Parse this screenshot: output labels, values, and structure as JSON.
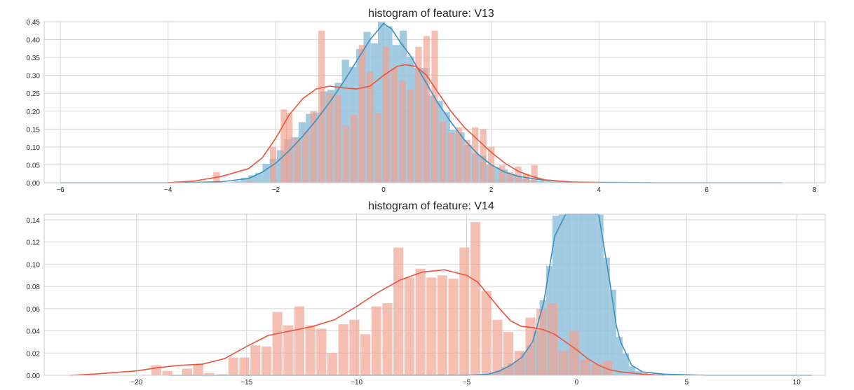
{
  "chart_data": [
    {
      "type": "histogram",
      "title": "histogram of feature: V13",
      "xlabel": "",
      "ylabel": "",
      "xlim": [
        -6.3,
        8.2
      ],
      "ylim": [
        0,
        0.45
      ],
      "xticks": [
        -6,
        -4,
        -2,
        0,
        2,
        4,
        6,
        8
      ],
      "xtick_labels": [
        "−6",
        "−4",
        "−2",
        "0",
        "2",
        "4",
        "6",
        "8"
      ],
      "yticks": [
        0,
        0.05,
        0.1,
        0.15,
        0.2,
        0.25,
        0.3,
        0.35,
        0.4,
        0.45
      ],
      "ytick_labels": [
        "0.00",
        "0.05",
        "0.10",
        "0.15",
        "0.20",
        "0.25",
        "0.30",
        "0.35",
        "0.40",
        "0.45"
      ],
      "grid": true,
      "colors": {
        "blue": "#3a8fc0",
        "red": "#e8543c",
        "blue_fill": "#92c2dc",
        "red_fill": "#f0a08f"
      },
      "series": [
        {
          "color": "blue",
          "bins": {
            "start": -6.0,
            "width": 0.134,
            "count": 100
          },
          "peaks": [
            [
              -2.8,
              0.0
            ],
            [
              -2.3,
              0.03
            ],
            [
              -1.8,
              0.11
            ],
            [
              -1.2,
              0.22
            ],
            [
              -0.6,
              0.34
            ],
            [
              -0.2,
              0.42
            ],
            [
              0.0,
              0.445
            ],
            [
              0.4,
              0.39
            ],
            [
              0.8,
              0.29
            ],
            [
              1.2,
              0.18
            ],
            [
              1.6,
              0.1
            ],
            [
              2.0,
              0.05
            ],
            [
              2.6,
              0.012
            ],
            [
              3.0,
              0.004
            ],
            [
              3.6,
              0.001
            ],
            [
              7.4,
              0.0
            ]
          ],
          "kde": [
            [
              -6.0,
              0.0
            ],
            [
              -4.0,
              0.0
            ],
            [
              -3.5,
              0.001
            ],
            [
              -3.0,
              0.003
            ],
            [
              -2.5,
              0.012
            ],
            [
              -2.25,
              0.03
            ],
            [
              -2.0,
              0.055
            ],
            [
              -1.75,
              0.09
            ],
            [
              -1.5,
              0.13
            ],
            [
              -1.25,
              0.175
            ],
            [
              -1.0,
              0.225
            ],
            [
              -0.75,
              0.28
            ],
            [
              -0.5,
              0.34
            ],
            [
              -0.25,
              0.4
            ],
            [
              0.0,
              0.445
            ],
            [
              0.15,
              0.43
            ],
            [
              0.3,
              0.395
            ],
            [
              0.5,
              0.355
            ],
            [
              0.75,
              0.29
            ],
            [
              1.0,
              0.225
            ],
            [
              1.25,
              0.17
            ],
            [
              1.5,
              0.12
            ],
            [
              1.75,
              0.08
            ],
            [
              2.0,
              0.05
            ],
            [
              2.25,
              0.03
            ],
            [
              2.5,
              0.018
            ],
            [
              2.75,
              0.012
            ],
            [
              3.0,
              0.007
            ],
            [
              3.5,
              0.002
            ],
            [
              4.0,
              0.001
            ],
            [
              5.0,
              0.0
            ],
            [
              7.4,
              0.0
            ]
          ]
        },
        {
          "color": "red",
          "bars": [
            [
              -3.1,
              0.03
            ],
            [
              -2.5,
              0.005
            ],
            [
              -2.05,
              0.1
            ],
            [
              -1.85,
              0.205
            ],
            [
              -1.75,
              0.195
            ],
            [
              -1.6,
              0.125
            ],
            [
              -1.45,
              0.145
            ],
            [
              -1.3,
              0.2
            ],
            [
              -1.15,
              0.425
            ],
            [
              -1.0,
              0.25
            ],
            [
              -0.85,
              0.245
            ],
            [
              -0.7,
              0.16
            ],
            [
              -0.55,
              0.19
            ],
            [
              -0.4,
              0.385
            ],
            [
              -0.25,
              0.31
            ],
            [
              -0.1,
              0.195
            ],
            [
              0.05,
              0.38
            ],
            [
              0.2,
              0.32
            ],
            [
              0.35,
              0.285
            ],
            [
              0.5,
              0.26
            ],
            [
              0.65,
              0.38
            ],
            [
              0.8,
              0.41
            ],
            [
              0.95,
              0.425
            ],
            [
              1.1,
              0.17
            ],
            [
              1.25,
              0.14
            ],
            [
              1.4,
              0.155
            ],
            [
              1.55,
              0.12
            ],
            [
              1.7,
              0.155
            ],
            [
              1.85,
              0.15
            ],
            [
              2.0,
              0.1
            ],
            [
              2.2,
              0.05
            ],
            [
              2.35,
              0.03
            ],
            [
              2.5,
              0.045
            ],
            [
              2.65,
              0.025
            ],
            [
              2.8,
              0.05
            ]
          ],
          "bar_width": 0.12,
          "kde": [
            [
              -4.0,
              0.0
            ],
            [
              -3.5,
              0.005
            ],
            [
              -3.0,
              0.018
            ],
            [
              -2.5,
              0.04
            ],
            [
              -2.25,
              0.07
            ],
            [
              -2.0,
              0.125
            ],
            [
              -1.75,
              0.19
            ],
            [
              -1.5,
              0.235
            ],
            [
              -1.25,
              0.262
            ],
            [
              -1.0,
              0.27
            ],
            [
              -0.75,
              0.265
            ],
            [
              -0.5,
              0.262
            ],
            [
              -0.25,
              0.27
            ],
            [
              0.0,
              0.3
            ],
            [
              0.25,
              0.325
            ],
            [
              0.4,
              0.33
            ],
            [
              0.6,
              0.325
            ],
            [
              0.8,
              0.3
            ],
            [
              1.0,
              0.255
            ],
            [
              1.25,
              0.2
            ],
            [
              1.5,
              0.155
            ],
            [
              1.75,
              0.12
            ],
            [
              2.0,
              0.085
            ],
            [
              2.25,
              0.055
            ],
            [
              2.5,
              0.032
            ],
            [
              2.75,
              0.018
            ],
            [
              3.0,
              0.008
            ],
            [
              3.5,
              0.002
            ],
            [
              4.0,
              0.0
            ]
          ]
        }
      ]
    },
    {
      "type": "histogram",
      "title": "histogram of feature: V14",
      "xlabel": "",
      "ylabel": "",
      "xlim": [
        -24.2,
        11.3
      ],
      "ylim": [
        0,
        0.145
      ],
      "xticks": [
        -20,
        -15,
        -10,
        -5,
        0,
        5,
        10
      ],
      "xtick_labels": [
        "−20",
        "−15",
        "−10",
        "−5",
        "0",
        "5",
        "10"
      ],
      "yticks": [
        0,
        0.02,
        0.04,
        0.06,
        0.08,
        0.1,
        0.12,
        0.14
      ],
      "ytick_labels": [
        "0.00",
        "0.02",
        "0.04",
        "0.06",
        "0.08",
        "0.10",
        "0.12",
        "0.14"
      ],
      "grid": true,
      "series": [
        {
          "color": "blue",
          "bins": {
            "start": -18.5,
            "width": 0.29,
            "count": 100
          },
          "peaks": [
            [
              -18.5,
              0.0
            ],
            [
              -4.0,
              0.001
            ],
            [
              -3.5,
              0.005
            ],
            [
              -3.0,
              0.01
            ],
            [
              -2.5,
              0.017
            ],
            [
              -2.0,
              0.03
            ],
            [
              -1.5,
              0.065
            ],
            [
              -1.0,
              0.14
            ],
            [
              -0.5,
              0.21
            ],
            [
              0.0,
              0.26
            ],
            [
              0.5,
              0.23
            ],
            [
              1.0,
              0.17
            ],
            [
              1.5,
              0.09
            ],
            [
              2.0,
              0.03
            ],
            [
              2.5,
              0.008
            ],
            [
              3.0,
              0.002
            ],
            [
              4.0,
              0.0005
            ],
            [
              10.7,
              0.0
            ]
          ],
          "kde": [
            [
              -18.5,
              0.0
            ],
            [
              -5.0,
              0.0
            ],
            [
              -4.0,
              0.001
            ],
            [
              -3.5,
              0.004
            ],
            [
              -3.0,
              0.009
            ],
            [
              -2.5,
              0.016
            ],
            [
              -2.0,
              0.03
            ],
            [
              -1.5,
              0.065
            ],
            [
              -1.0,
              0.125
            ],
            [
              -0.5,
              0.2
            ],
            [
              0.0,
              0.25
            ],
            [
              0.5,
              0.22
            ],
            [
              1.0,
              0.16
            ],
            [
              1.5,
              0.085
            ],
            [
              1.8,
              0.045
            ],
            [
              2.0,
              0.03
            ],
            [
              2.5,
              0.009
            ],
            [
              3.0,
              0.003
            ],
            [
              4.0,
              0.001
            ],
            [
              6.0,
              0.0
            ],
            [
              10.7,
              0.0
            ]
          ]
        },
        {
          "color": "red",
          "bars": [
            [
              -19.1,
              0.009
            ],
            [
              -18.6,
              0.004
            ],
            [
              -17.7,
              0.006
            ],
            [
              -17.2,
              0.01
            ],
            [
              -16.7,
              0.002
            ],
            [
              -16.1,
              0.001
            ],
            [
              -15.6,
              0.016
            ],
            [
              -15.1,
              0.016
            ],
            [
              -14.6,
              0.027
            ],
            [
              -14.1,
              0.026
            ],
            [
              -13.6,
              0.057
            ],
            [
              -13.1,
              0.045
            ],
            [
              -12.6,
              0.062
            ],
            [
              -12.1,
              0.045
            ],
            [
              -11.6,
              0.042
            ],
            [
              -11.1,
              0.02
            ],
            [
              -10.6,
              0.046
            ],
            [
              -10.1,
              0.05
            ],
            [
              -9.6,
              0.037
            ],
            [
              -9.1,
              0.062
            ],
            [
              -8.6,
              0.065
            ],
            [
              -8.1,
              0.115
            ],
            [
              -7.6,
              0.088
            ],
            [
              -7.1,
              0.096
            ],
            [
              -6.6,
              0.088
            ],
            [
              -6.1,
              0.09
            ],
            [
              -5.6,
              0.087
            ],
            [
              -5.1,
              0.115
            ],
            [
              -4.6,
              0.138
            ],
            [
              -4.1,
              0.076
            ],
            [
              -3.6,
              0.05
            ],
            [
              -3.1,
              0.039
            ],
            [
              -2.6,
              0.022
            ],
            [
              -2.1,
              0.052
            ],
            [
              -1.6,
              0.06
            ],
            [
              -1.1,
              0.065
            ],
            [
              -0.6,
              0.022
            ],
            [
              -0.1,
              0.04
            ],
            [
              0.4,
              0.014
            ],
            [
              0.9,
              0.01
            ],
            [
              1.4,
              0.013
            ]
          ],
          "bar_width": 0.45,
          "kde": [
            [
              -23.0,
              0.0
            ],
            [
              -22.0,
              0.001
            ],
            [
              -20.0,
              0.004
            ],
            [
              -19.0,
              0.007
            ],
            [
              -18.0,
              0.009
            ],
            [
              -17.0,
              0.01
            ],
            [
              -16.0,
              0.015
            ],
            [
              -15.0,
              0.026
            ],
            [
              -14.0,
              0.036
            ],
            [
              -13.0,
              0.04
            ],
            [
              -12.0,
              0.044
            ],
            [
              -11.0,
              0.05
            ],
            [
              -10.0,
              0.062
            ],
            [
              -9.0,
              0.075
            ],
            [
              -8.0,
              0.086
            ],
            [
              -7.0,
              0.093
            ],
            [
              -6.0,
              0.095
            ],
            [
              -5.0,
              0.09
            ],
            [
              -4.5,
              0.084
            ],
            [
              -4.0,
              0.072
            ],
            [
              -3.5,
              0.06
            ],
            [
              -3.0,
              0.049
            ],
            [
              -2.5,
              0.044
            ],
            [
              -2.0,
              0.043
            ],
            [
              -1.5,
              0.041
            ],
            [
              -1.0,
              0.037
            ],
            [
              -0.5,
              0.03
            ],
            [
              0.0,
              0.023
            ],
            [
              0.5,
              0.015
            ],
            [
              1.0,
              0.009
            ],
            [
              1.5,
              0.005
            ],
            [
              2.0,
              0.003
            ],
            [
              3.0,
              0.001
            ],
            [
              4.0,
              0.0
            ]
          ]
        }
      ]
    }
  ]
}
